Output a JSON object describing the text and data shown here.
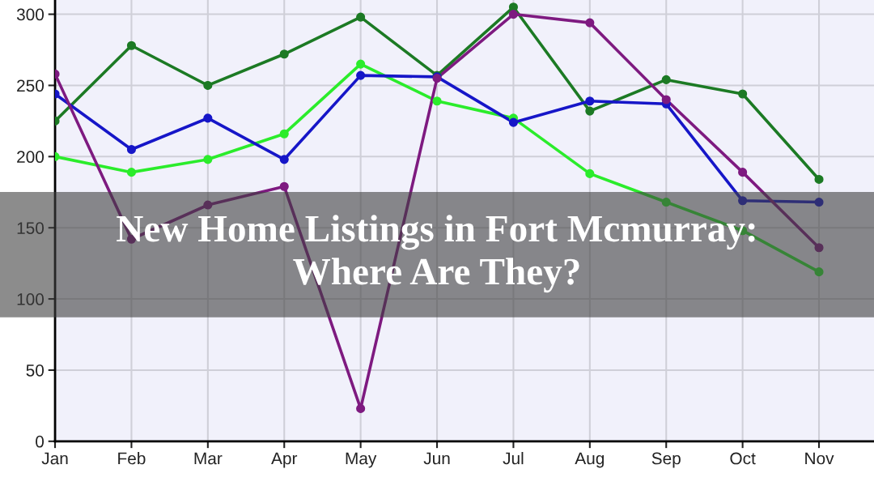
{
  "chart_data": {
    "type": "line",
    "title": "New Home Listings in Fort Mcmurray:\nWhere Are They?",
    "categories": [
      "Jan",
      "Feb",
      "Mar",
      "Apr",
      "May",
      "Jun",
      "Jul",
      "Aug",
      "Sep",
      "Oct",
      "Nov"
    ],
    "series": [
      {
        "color": "#1c7a24",
        "values": [
          225,
          278,
          250,
          272,
          298,
          257,
          305,
          232,
          254,
          244,
          184
        ]
      },
      {
        "color": "#2bec2b",
        "values": [
          200,
          189,
          198,
          216,
          265,
          239,
          227,
          188,
          168,
          148,
          119
        ]
      },
      {
        "color": "#1616c8",
        "values": [
          244,
          205,
          227,
          198,
          257,
          256,
          224,
          239,
          237,
          169,
          168
        ]
      },
      {
        "color": "#7e1a80",
        "values": [
          258,
          142,
          166,
          179,
          23,
          255,
          300,
          294,
          240,
          189,
          136
        ]
      }
    ],
    "ylim": [
      0,
      310
    ],
    "yticks": [
      0,
      50,
      100,
      150,
      200,
      250,
      300
    ],
    "grid": true,
    "marker": "circle",
    "line_style": "solid"
  }
}
